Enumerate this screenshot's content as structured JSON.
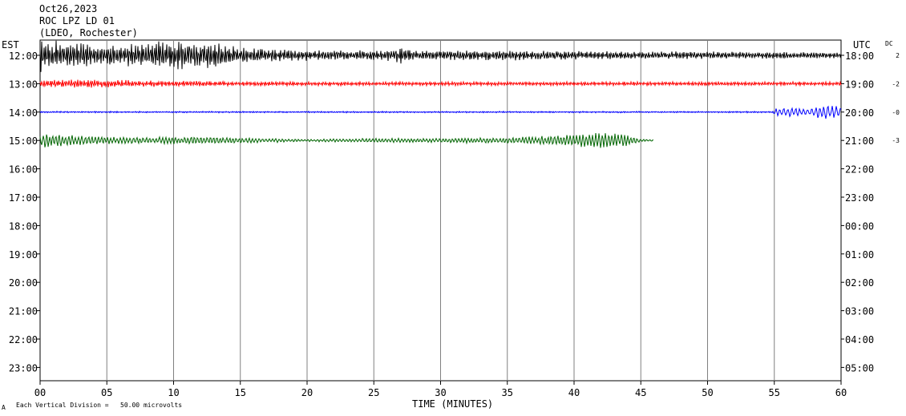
{
  "header": {
    "date": "Oct26,2023",
    "station": "ROC LPZ LD 01",
    "network": "(LDEO, Rochester)"
  },
  "labels": {
    "left_zone": "EST",
    "right_zone": "UTC",
    "dc": "DC",
    "xlabel": "TIME (MINUTES)",
    "scale_note": "Each Vertical Division =   50.00 microvolts",
    "corner_mark": "A"
  },
  "colors": [
    "#000000",
    "#ff0000",
    "#0000ff",
    "#006400"
  ],
  "chart_data": {
    "type": "line",
    "x_ticks": [
      "00",
      "05",
      "10",
      "15",
      "20",
      "25",
      "30",
      "35",
      "40",
      "45",
      "50",
      "55",
      "60"
    ],
    "xlim": [
      0,
      60
    ],
    "grid": true,
    "rows_left": [
      "12:00",
      "13:00",
      "14:00",
      "15:00",
      "16:00",
      "17:00",
      "18:00",
      "19:00",
      "20:00",
      "21:00",
      "22:00",
      "23:00"
    ],
    "rows_right": [
      "18:00",
      "19:00",
      "20:00",
      "21:00",
      "22:00",
      "23:00",
      "00:00",
      "01:00",
      "02:00",
      "03:00",
      "04:00",
      "05:00"
    ],
    "dc_values": [
      "2",
      "-2",
      "-0",
      "-3"
    ],
    "traces": [
      {
        "row": 0,
        "color": "#000000",
        "x_end": 60,
        "envelope": [
          [
            0,
            22
          ],
          [
            2,
            18
          ],
          [
            4,
            14
          ],
          [
            8,
            16
          ],
          [
            9,
            20
          ],
          [
            14,
            17
          ],
          [
            15,
            10
          ],
          [
            20,
            7
          ],
          [
            26,
            7
          ],
          [
            27.5,
            12
          ],
          [
            28,
            6
          ],
          [
            35,
            7
          ],
          [
            40,
            6
          ],
          [
            45,
            5
          ],
          [
            50,
            5
          ],
          [
            60,
            4
          ]
        ]
      },
      {
        "row": 1,
        "color": "#ff0000",
        "x_end": 60,
        "envelope": [
          [
            0,
            5
          ],
          [
            5,
            5
          ],
          [
            10,
            3.5
          ],
          [
            20,
            2.5
          ],
          [
            30,
            2.5
          ],
          [
            45,
            2.5
          ],
          [
            60,
            2.5
          ]
        ]
      },
      {
        "row": 2,
        "color": "#0000ff",
        "x_end": 60,
        "envelope": [
          [
            0,
            1
          ],
          [
            54.8,
            1
          ],
          [
            55.2,
            5
          ],
          [
            56.5,
            6
          ],
          [
            57.5,
            4
          ],
          [
            58.5,
            9
          ],
          [
            60,
            7
          ]
        ]
      },
      {
        "row": 3,
        "color": "#006400",
        "x_end": 46,
        "envelope": [
          [
            0,
            10
          ],
          [
            1,
            9
          ],
          [
            3,
            6
          ],
          [
            6,
            4
          ],
          [
            10,
            5
          ],
          [
            15,
            4
          ],
          [
            20,
            1.5
          ],
          [
            25,
            3
          ],
          [
            30,
            3
          ],
          [
            35,
            4
          ],
          [
            38,
            6
          ],
          [
            40,
            8
          ],
          [
            42,
            11
          ],
          [
            44,
            8
          ],
          [
            45,
            2
          ],
          [
            46,
            1
          ]
        ]
      }
    ]
  }
}
